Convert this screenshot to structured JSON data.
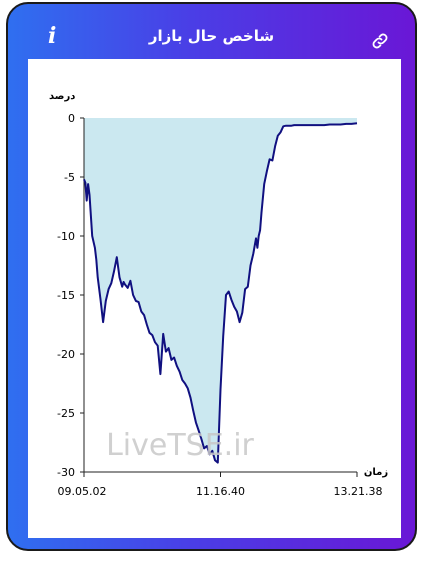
{
  "header": {
    "title": "شاخص حال بازار",
    "info_icon": "info-icon",
    "link_icon": "link-icon"
  },
  "chart_data": {
    "type": "area",
    "ylabel": "درصد",
    "xlabel": "زمان",
    "ylim": [
      -30,
      0
    ],
    "y_ticks": [
      "0",
      "-5",
      "-10",
      "-15",
      "-20",
      "-25",
      "-30"
    ],
    "x_ticks": [
      "09.05.02",
      "11.16.40",
      "13.21.38"
    ],
    "watermark": "LiveTSE.ir",
    "fill_color": "#cbe8f0",
    "line_color": "#101080",
    "series": [
      {
        "x": [
          0,
          0.5,
          1,
          1.5,
          2,
          3,
          4,
          4.5,
          5,
          6,
          7,
          8,
          9,
          10,
          11,
          12,
          13,
          14,
          14.5,
          15,
          16,
          17,
          18,
          19,
          20,
          21,
          22,
          23,
          24,
          25,
          26,
          27,
          28,
          29,
          30,
          31,
          32,
          33,
          34,
          35,
          36,
          37,
          38,
          39,
          40,
          41,
          42,
          43,
          44,
          45,
          46,
          47,
          48,
          49,
          50,
          51,
          52,
          53,
          54,
          55,
          56,
          57,
          58,
          59,
          60,
          61,
          62,
          63,
          63.5,
          64,
          64.5,
          65,
          66,
          67,
          68,
          69,
          70,
          71,
          72,
          73,
          74,
          75,
          76,
          77,
          78,
          79,
          80,
          81,
          82,
          83,
          84,
          85,
          86,
          88,
          90,
          92,
          94,
          96,
          98,
          100
        ],
        "y": [
          -5.2,
          -5.5,
          -7.0,
          -5.6,
          -6.5,
          -10.0,
          -11.0,
          -12.0,
          -13.5,
          -15.3,
          -17.3,
          -15.5,
          -14.5,
          -14.0,
          -13.0,
          -11.8,
          -13.5,
          -14.3,
          -13.9,
          -14.1,
          -14.4,
          -13.8,
          -15.0,
          -15.5,
          -15.6,
          -16.4,
          -16.7,
          -17.5,
          -18.2,
          -18.4,
          -19.0,
          -19.3,
          -21.7,
          -18.3,
          -19.8,
          -19.5,
          -20.5,
          -20.3,
          -21.0,
          -21.5,
          -22.2,
          -22.5,
          -22.9,
          -23.7,
          -24.8,
          -25.8,
          -26.5,
          -27.2,
          -28.0,
          -27.8,
          -28.5,
          -28.2,
          -29.0,
          -29.2,
          -23.0,
          -18.5,
          -15.0,
          -14.7,
          -15.4,
          -16.0,
          -16.4,
          -17.3,
          -16.5,
          -14.5,
          -14.3,
          -12.5,
          -11.5,
          -10.2,
          -11.0,
          -10.0,
          -9.5,
          -8.0,
          -5.6,
          -4.5,
          -3.5,
          -3.6,
          -2.4,
          -1.5,
          -1.2,
          -0.7,
          -0.65,
          -0.65,
          -0.65,
          -0.6,
          -0.6,
          -0.6,
          -0.6,
          -0.6,
          -0.6,
          -0.6,
          -0.6,
          -0.6,
          -0.6,
          -0.6,
          -0.55,
          -0.55,
          -0.55,
          -0.5,
          -0.5,
          -0.45
        ]
      }
    ]
  }
}
